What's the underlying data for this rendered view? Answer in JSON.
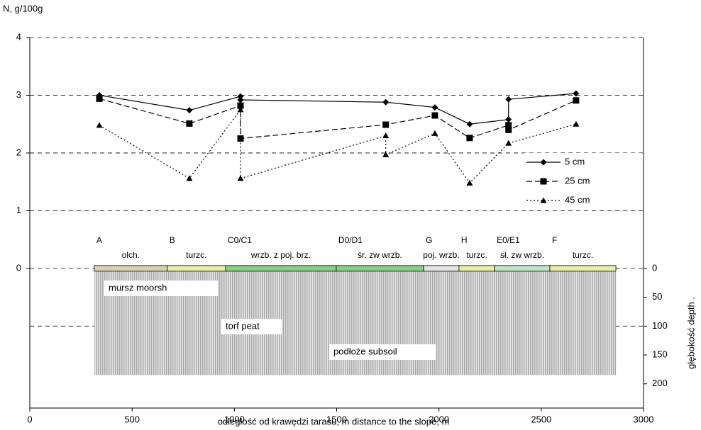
{
  "chart_data": {
    "type": "line",
    "title": "N, g/100g",
    "x_label": "odległość od krawędzi tarasu, m   distance to the slope, m",
    "y2_label": "głębokość  depth .",
    "xlim": [
      0,
      3000
    ],
    "xticks": [
      0,
      500,
      1000,
      1500,
      2000,
      2500,
      3000
    ],
    "ylim": [
      -2.42,
      4
    ],
    "yticks": [
      0,
      1,
      2,
      3,
      4
    ],
    "y2lim": [
      -400,
      242
    ],
    "y2ticks": [
      0,
      50,
      100,
      150,
      200
    ],
    "y2grid": [
      100
    ],
    "grid": true,
    "series": [
      {
        "name": "5 cm",
        "color": "#000000",
        "style": "solid",
        "marker": "diamond",
        "x": [
          340,
          780,
          1030,
          1030,
          1740,
          1980,
          2150,
          2340,
          2340,
          2670
        ],
        "values": [
          3.0,
          2.74,
          2.98,
          2.92,
          2.88,
          2.79,
          2.5,
          2.58,
          2.93,
          3.03
        ]
      },
      {
        "name": "25 cm",
        "color": "#000000",
        "style": "dashed",
        "marker": "square",
        "x": [
          340,
          780,
          1030,
          1030,
          1740,
          1980,
          2150,
          2340,
          2340,
          2670
        ],
        "values": [
          2.94,
          2.51,
          2.82,
          2.25,
          2.49,
          2.65,
          2.26,
          2.48,
          2.4,
          2.91
        ]
      },
      {
        "name": "45 cm",
        "color": "#000000",
        "style": "dotted",
        "marker": "triangle",
        "x": [
          340,
          780,
          1030,
          1030,
          1740,
          1740,
          1980,
          2150,
          2340,
          2670
        ],
        "values": [
          2.48,
          1.56,
          2.75,
          1.56,
          2.3,
          1.97,
          2.34,
          1.48,
          2.17,
          2.5
        ]
      }
    ],
    "profile": {
      "depth": 185,
      "segments": [
        {
          "site": "A",
          "habitat": "olch.",
          "start": 315,
          "end": 672,
          "color": "#d8d0b0"
        },
        {
          "site": "B",
          "habitat": "turzc.",
          "start": 672,
          "end": 957,
          "color": "#e8eeaa"
        },
        {
          "site": "C0/C1",
          "habitat": "wrzb. z poj. brz.",
          "start": 957,
          "end": 1498,
          "color": "#88d088"
        },
        {
          "site": "D0/D1",
          "habitat": "śr. zw wrzb.",
          "start": 1498,
          "end": 1925,
          "color": "#88d088"
        },
        {
          "site": "G",
          "habitat": "poj. wrzb.",
          "start": 1925,
          "end": 2098,
          "color": "#e4e4e4"
        },
        {
          "site": "H",
          "habitat": "turzc.",
          "start": 2098,
          "end": 2272,
          "color": "#e8eeaa"
        },
        {
          "site": "E0/E1",
          "habitat": "sł. zw wrzb.",
          "start": 2272,
          "end": 2542,
          "color": "#bfe6c8"
        },
        {
          "site": "F",
          "habitat": "turzc.",
          "start": 2542,
          "end": 2865,
          "color": "#e8eeaa"
        }
      ],
      "layers": [
        "mursz  moorsh",
        "torf  peat",
        "podłoże  subsoil"
      ]
    }
  }
}
